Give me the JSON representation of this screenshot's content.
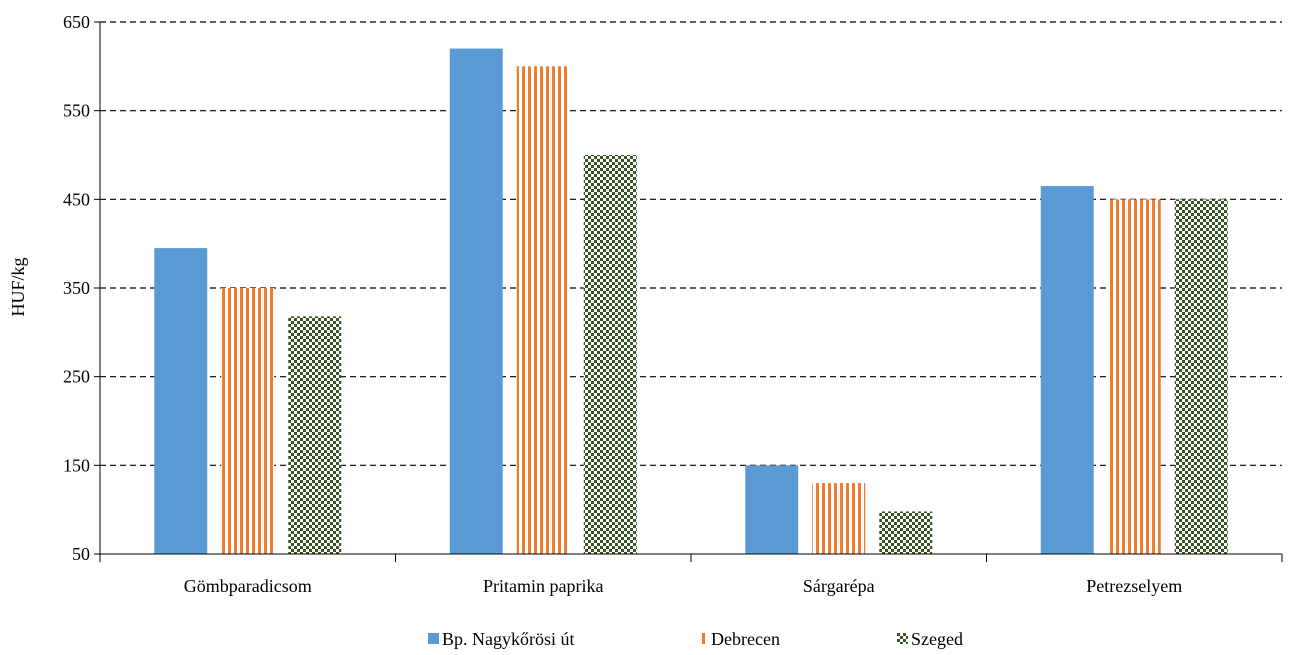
{
  "chart_data": {
    "type": "bar",
    "title": "",
    "xlabel": "",
    "ylabel": "HUF/kg",
    "ylim": [
      50,
      650
    ],
    "yticks": [
      50,
      150,
      250,
      350,
      450,
      550,
      650
    ],
    "grid": "horizontal dashed",
    "legend_position": "bottom",
    "categories": [
      "Gömbparadicsom",
      "Pritamin paprika",
      "Sárgarépa",
      "Petrezselyem"
    ],
    "series": [
      {
        "name": "Bp. Nagykőrösi út",
        "values": [
          395,
          620,
          150,
          465
        ],
        "color": "#5b9bd5",
        "pattern": "solid"
      },
      {
        "name": "Debrecen",
        "values": [
          350,
          600,
          130,
          450
        ],
        "color": "#ed7d31",
        "pattern": "vertical-stripes"
      },
      {
        "name": "Szeged",
        "values": [
          318,
          500,
          98,
          450
        ],
        "color": "#375623",
        "pattern": "checkerboard"
      }
    ]
  }
}
